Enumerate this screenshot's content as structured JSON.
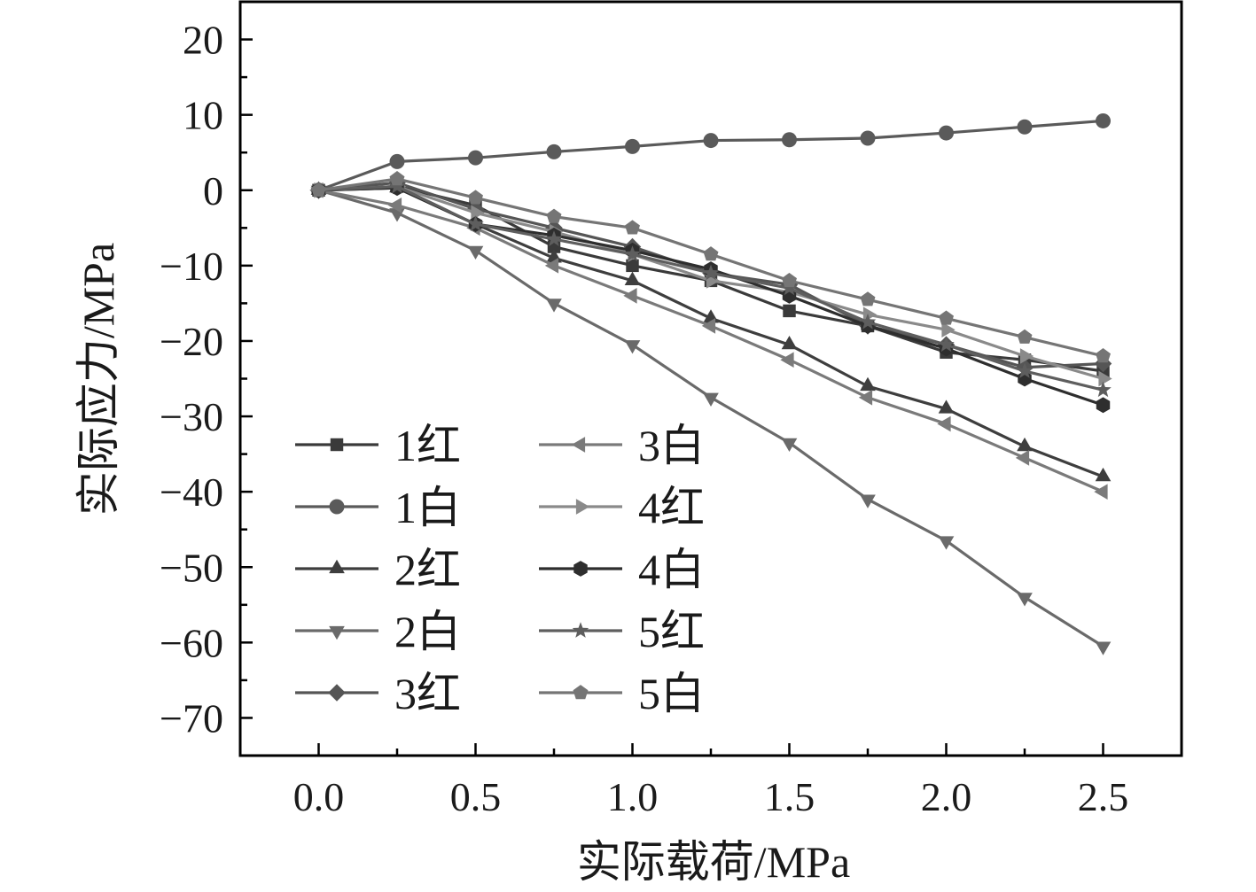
{
  "chart_data": {
    "type": "line",
    "title": "",
    "xlabel": "实际载荷/MPa",
    "ylabel": "实际应力/MPa",
    "xlim": [
      -0.25,
      2.75
    ],
    "ylim": [
      -75,
      25
    ],
    "xticks": [
      0.0,
      0.5,
      1.0,
      1.5,
      2.0,
      2.5
    ],
    "xtick_labels": [
      "0.0",
      "0.5",
      "1.0",
      "1.5",
      "2.0",
      "2.5"
    ],
    "yticks": [
      20,
      10,
      0,
      -10,
      -20,
      -30,
      -40,
      -50,
      -60,
      -70
    ],
    "ytick_labels": [
      "20",
      "10",
      "0",
      "−10",
      "−20",
      "−30",
      "−40",
      "−50",
      "−60",
      "−70"
    ],
    "grid": false,
    "legend_position": "bottom-left",
    "x": [
      0,
      0.25,
      0.5,
      0.75,
      1.0,
      1.25,
      1.5,
      1.75,
      2.0,
      2.25,
      2.5
    ],
    "series": [
      {
        "name": "1红",
        "marker": "square",
        "color": "#3a3a3a",
        "values": [
          0,
          0.5,
          -2,
          -7.5,
          -10,
          -12,
          -16,
          -18,
          -21.5,
          -22.5,
          -24
        ]
      },
      {
        "name": "1白",
        "marker": "circle",
        "color": "#5a5a5a",
        "values": [
          0,
          3.8,
          4.3,
          5.1,
          5.8,
          6.6,
          6.7,
          6.9,
          7.6,
          8.4,
          9.2
        ]
      },
      {
        "name": "2红",
        "marker": "triangle-up",
        "color": "#3e3e3e",
        "values": [
          0,
          0.3,
          -4.5,
          -9,
          -12,
          -17,
          -20.5,
          -26,
          -29,
          -34,
          -38
        ]
      },
      {
        "name": "2白",
        "marker": "triangle-down",
        "color": "#6a6a6a",
        "values": [
          0,
          -3,
          -8,
          -15,
          -20.5,
          -27.5,
          -33.5,
          -41,
          -46.5,
          -54,
          -60.5
        ]
      },
      {
        "name": "3红",
        "marker": "diamond",
        "color": "#555555",
        "values": [
          0,
          1,
          -2.5,
          -5,
          -7.5,
          -11,
          -12.5,
          -18,
          -20.5,
          -23.5,
          -23
        ]
      },
      {
        "name": "3白",
        "marker": "triangle-left",
        "color": "#7a7a7a",
        "values": [
          0,
          -2,
          -5,
          -10,
          -14,
          -18,
          -22.5,
          -27.5,
          -31,
          -35.5,
          -40
        ]
      },
      {
        "name": "4红",
        "marker": "triangle-right",
        "color": "#8a8a8a",
        "values": [
          0,
          0.5,
          -3,
          -5.5,
          -8.5,
          -12,
          -13.5,
          -16.5,
          -18.5,
          -22,
          -25
        ]
      },
      {
        "name": "4白",
        "marker": "hexagon",
        "color": "#2e2e2e",
        "values": [
          0,
          0.3,
          -4.5,
          -6,
          -8,
          -10.5,
          -14,
          -18,
          -21,
          -25,
          -28.5
        ]
      },
      {
        "name": "5红",
        "marker": "star",
        "color": "#5e5e5e",
        "values": [
          0,
          0.5,
          -4.5,
          -6.5,
          -8.5,
          -11,
          -13,
          -17.5,
          -20.5,
          -24,
          -26.5
        ]
      },
      {
        "name": "5白",
        "marker": "pentagon",
        "color": "#757575",
        "values": [
          0,
          1.5,
          -1,
          -3.5,
          -5,
          -8.5,
          -12,
          -14.5,
          -17,
          -19.5,
          -22
        ]
      }
    ]
  }
}
